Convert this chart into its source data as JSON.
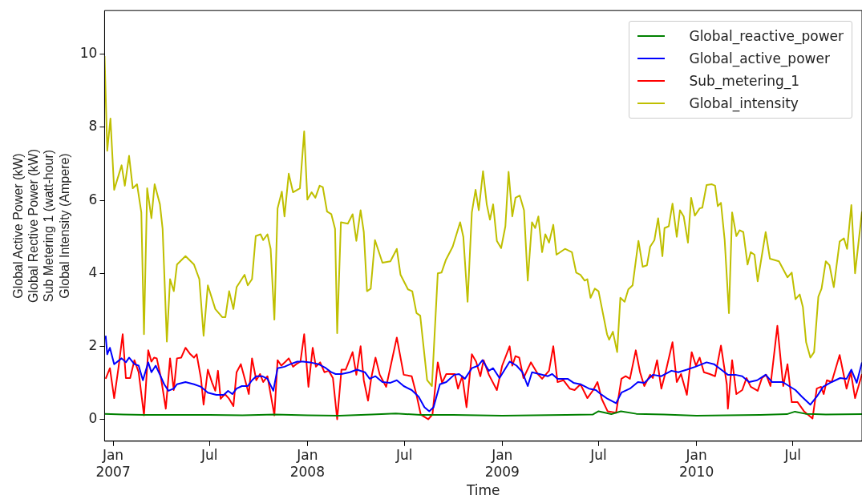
{
  "chart_data": {
    "type": "line",
    "xlabel": "Time",
    "ylabel": "Global Active Power (kW)\nGlobal Rective Power (kW)\nSub Metering 1 (watt-hour)\nGlobal Intensity (Ampere)",
    "xlim": [
      "2006-12-16",
      "2010-11-08"
    ],
    "ylim": [
      -0.6,
      11.2
    ],
    "yticks": [
      0,
      2,
      4,
      6,
      8,
      10
    ],
    "xticks": [
      {
        "value": "2007-01-01",
        "label": "Jan\n2007"
      },
      {
        "value": "2007-07-01",
        "label": "Jul"
      },
      {
        "value": "2008-01-01",
        "label": "Jan\n2008"
      },
      {
        "value": "2008-07-01",
        "label": "Jul"
      },
      {
        "value": "2009-01-01",
        "label": "Jan\n2009"
      },
      {
        "value": "2009-07-01",
        "label": "Jul"
      },
      {
        "value": "2010-01-01",
        "label": "Jan\n2010"
      },
      {
        "value": "2010-07-01",
        "label": "Jul"
      }
    ],
    "grid": false,
    "legend": "top right",
    "marker": "none",
    "line_style": "solid",
    "series": [
      {
        "name": "Global_reactive_power",
        "color": "#008000",
        "x": [
          "2006-12-16",
          "2007-01-20",
          "2007-03-01",
          "2007-05-01",
          "2007-07-01",
          "2007-09-01",
          "2007-11-01",
          "2008-01-01",
          "2008-03-01",
          "2008-05-01",
          "2008-06-15",
          "2008-08-01",
          "2008-10-01",
          "2009-01-01",
          "2009-03-01",
          "2009-05-01",
          "2009-06-20",
          "2009-07-01",
          "2009-07-25",
          "2009-08-12",
          "2009-09-10",
          "2009-11-01",
          "2010-01-01",
          "2010-03-01",
          "2010-05-01",
          "2010-06-20",
          "2010-07-05",
          "2010-07-25",
          "2010-09-01",
          "2010-11-08"
        ],
        "values": [
          0.15,
          0.13,
          0.12,
          0.12,
          0.12,
          0.11,
          0.13,
          0.11,
          0.1,
          0.13,
          0.16,
          0.12,
          0.12,
          0.1,
          0.11,
          0.12,
          0.13,
          0.22,
          0.14,
          0.22,
          0.15,
          0.13,
          0.1,
          0.11,
          0.12,
          0.14,
          0.21,
          0.15,
          0.13,
          0.14
        ]
      },
      {
        "name": "Global_active_power",
        "color": "#0000ff",
        "x": [
          "2006-12-18",
          "2006-12-21",
          "2006-12-26",
          "2007-01-03",
          "2007-01-17",
          "2007-01-25",
          "2007-01-31",
          "2007-02-10",
          "2007-02-18",
          "2007-02-26",
          "2007-03-08",
          "2007-03-14",
          "2007-03-22",
          "2007-03-30",
          "2007-04-07",
          "2007-04-15",
          "2007-04-25",
          "2007-05-01",
          "2007-05-17",
          "2007-06-02",
          "2007-06-15",
          "2007-06-28",
          "2007-07-14",
          "2007-07-28",
          "2007-08-05",
          "2007-08-13",
          "2007-08-21",
          "2007-08-31",
          "2007-09-11",
          "2007-09-19",
          "2007-09-27",
          "2007-10-08",
          "2007-10-18",
          "2007-10-29",
          "2007-11-06",
          "2007-11-19",
          "2007-11-30",
          "2007-12-13",
          "2007-12-24",
          "2008-01-06",
          "2008-01-22",
          "2008-02-05",
          "2008-02-15",
          "2008-02-23",
          "2008-03-05",
          "2008-03-21",
          "2008-04-03",
          "2008-04-18",
          "2008-04-27",
          "2008-05-08",
          "2008-05-21",
          "2008-06-05",
          "2008-06-17",
          "2008-06-30",
          "2008-07-15",
          "2008-07-28",
          "2008-08-08",
          "2008-08-17",
          "2008-08-25",
          "2008-09-06",
          "2008-09-18",
          "2008-10-03",
          "2008-10-12",
          "2008-10-23",
          "2008-11-05",
          "2008-11-17",
          "2008-11-25",
          "2008-12-01",
          "2008-12-07",
          "2008-12-15",
          "2008-12-27",
          "2009-01-15",
          "2009-01-28",
          "2009-02-08",
          "2009-02-18",
          "2009-02-26",
          "2009-03-12",
          "2009-03-28",
          "2009-04-05",
          "2009-04-15",
          "2009-05-04",
          "2009-05-15",
          "2009-05-28",
          "2009-06-13",
          "2009-06-26",
          "2009-07-07",
          "2009-07-18",
          "2009-08-03",
          "2009-08-13",
          "2009-08-29",
          "2009-09-13",
          "2009-09-25",
          "2009-10-11",
          "2009-10-27",
          "2009-11-15",
          "2009-11-28",
          "2009-12-14",
          "2009-12-30",
          "2010-01-20",
          "2010-02-03",
          "2010-02-13",
          "2010-03-01",
          "2010-03-15",
          "2010-03-28",
          "2010-04-10",
          "2010-04-25",
          "2010-05-11",
          "2010-05-23",
          "2010-06-12",
          "2010-06-24",
          "2010-07-06",
          "2010-07-18",
          "2010-08-03",
          "2010-08-15",
          "2010-08-27",
          "2010-09-12",
          "2010-09-28",
          "2010-10-10",
          "2010-10-19",
          "2010-10-29",
          "2010-11-08"
        ],
        "values": [
          2.29,
          1.78,
          1.96,
          1.51,
          1.67,
          1.56,
          1.69,
          1.51,
          1.47,
          1.07,
          1.56,
          1.29,
          1.47,
          1.22,
          0.96,
          0.78,
          0.84,
          0.96,
          1.02,
          0.96,
          0.89,
          0.73,
          0.67,
          0.67,
          0.78,
          0.69,
          0.84,
          0.91,
          0.91,
          1.07,
          1.18,
          1.18,
          1.11,
          0.78,
          1.4,
          1.44,
          1.51,
          1.58,
          1.58,
          1.56,
          1.51,
          1.4,
          1.29,
          1.24,
          1.24,
          1.29,
          1.36,
          1.29,
          1.11,
          1.18,
          1.02,
          1.0,
          1.07,
          0.91,
          0.8,
          0.62,
          0.33,
          0.22,
          0.33,
          0.96,
          1.02,
          1.22,
          1.24,
          1.11,
          1.4,
          1.47,
          1.62,
          1.47,
          1.33,
          1.4,
          1.13,
          1.58,
          1.47,
          1.29,
          0.91,
          1.29,
          1.24,
          1.18,
          1.24,
          1.11,
          1.11,
          1.0,
          0.96,
          0.84,
          0.8,
          0.67,
          0.56,
          0.44,
          0.73,
          0.84,
          1.02,
          1.0,
          1.22,
          1.18,
          1.33,
          1.29,
          1.36,
          1.44,
          1.56,
          1.51,
          1.4,
          1.22,
          1.22,
          1.18,
          1.02,
          1.07,
          1.22,
          1.02,
          1.02,
          0.91,
          0.8,
          0.62,
          0.4,
          0.62,
          0.89,
          1.02,
          1.13,
          1.11,
          1.36,
          1.0,
          1.56
        ]
      },
      {
        "name": "Sub_metering_1",
        "color": "#ff0000",
        "x": [
          "2006-12-18",
          "2006-12-26",
          "2007-01-03",
          "2007-01-11",
          "2007-01-19",
          "2007-01-25",
          "2007-02-02",
          "2007-02-10",
          "2007-02-18",
          "2007-02-28",
          "2007-03-08",
          "2007-03-14",
          "2007-03-19",
          "2007-03-24",
          "2007-04-01",
          "2007-04-10",
          "2007-04-18",
          "2007-04-25",
          "2007-05-01",
          "2007-05-09",
          "2007-05-17",
          "2007-05-25",
          "2007-06-02",
          "2007-06-07",
          "2007-06-15",
          "2007-06-20",
          "2007-06-28",
          "2007-07-06",
          "2007-07-12",
          "2007-07-17",
          "2007-07-22",
          "2007-07-30",
          "2007-08-07",
          "2007-08-15",
          "2007-08-21",
          "2007-08-29",
          "2007-09-05",
          "2007-09-13",
          "2007-09-19",
          "2007-09-27",
          "2007-10-04",
          "2007-10-10",
          "2007-10-18",
          "2007-10-31",
          "2007-11-06",
          "2007-11-13",
          "2007-11-21",
          "2007-11-27",
          "2007-12-05",
          "2007-12-11",
          "2007-12-19",
          "2007-12-26",
          "2008-01-03",
          "2008-01-11",
          "2008-01-17",
          "2008-01-25",
          "2008-02-02",
          "2008-02-10",
          "2008-02-18",
          "2008-02-26",
          "2008-03-05",
          "2008-03-13",
          "2008-03-26",
          "2008-04-02",
          "2008-04-10",
          "2008-04-16",
          "2008-04-24",
          "2008-04-30",
          "2008-05-08",
          "2008-05-16",
          "2008-05-28",
          "2008-06-17",
          "2008-06-30",
          "2008-07-15",
          "2008-07-24",
          "2008-08-01",
          "2008-08-15",
          "2008-08-23",
          "2008-09-02",
          "2008-09-10",
          "2008-09-18",
          "2008-09-26",
          "2008-10-04",
          "2008-10-10",
          "2008-10-18",
          "2008-10-26",
          "2008-11-05",
          "2008-11-13",
          "2008-11-21",
          "2008-11-27",
          "2008-12-07",
          "2008-12-22",
          "2009-01-01",
          "2009-01-15",
          "2009-01-20",
          "2009-01-26",
          "2009-02-02",
          "2009-02-10",
          "2009-02-24",
          "2009-03-09",
          "2009-03-17",
          "2009-03-30",
          "2009-04-07",
          "2009-04-15",
          "2009-04-26",
          "2009-05-08",
          "2009-05-17",
          "2009-05-28",
          "2009-06-10",
          "2009-06-21",
          "2009-06-29",
          "2009-07-07",
          "2009-07-18",
          "2009-08-03",
          "2009-08-13",
          "2009-08-21",
          "2009-08-29",
          "2009-09-09",
          "2009-09-17",
          "2009-09-25",
          "2009-10-06",
          "2009-10-11",
          "2009-10-19",
          "2009-10-27",
          "2009-11-04",
          "2009-11-17",
          "2009-11-25",
          "2009-12-03",
          "2009-12-14",
          "2009-12-23",
          "2009-12-31",
          "2010-01-07",
          "2010-01-15",
          "2010-01-26",
          "2010-02-05",
          "2010-02-16",
          "2010-02-27",
          "2010-03-01",
          "2010-03-09",
          "2010-03-17",
          "2010-03-28",
          "2010-04-05",
          "2010-04-13",
          "2010-04-26",
          "2010-05-04",
          "2010-05-12",
          "2010-05-20",
          "2010-06-02",
          "2010-06-13",
          "2010-06-21",
          "2010-06-29",
          "2010-07-10",
          "2010-07-22",
          "2010-08-07",
          "2010-08-15",
          "2010-08-23",
          "2010-08-28",
          "2010-09-03",
          "2010-09-12",
          "2010-09-27",
          "2010-10-10",
          "2010-10-18",
          "2010-10-26",
          "2010-11-08"
        ],
        "values": [
          1.11,
          1.4,
          0.58,
          1.4,
          2.33,
          1.13,
          1.13,
          1.62,
          1.29,
          0.11,
          1.89,
          1.58,
          1.69,
          1.67,
          1.13,
          0.29,
          1.67,
          0.8,
          1.67,
          1.69,
          1.96,
          1.8,
          1.69,
          1.78,
          1.13,
          0.4,
          1.36,
          1.0,
          0.78,
          1.33,
          0.56,
          0.69,
          0.56,
          0.36,
          1.29,
          1.51,
          1.13,
          0.69,
          1.67,
          1.07,
          1.24,
          1.02,
          1.18,
          0.11,
          1.62,
          1.47,
          1.58,
          1.67,
          1.44,
          1.51,
          1.58,
          2.33,
          0.89,
          1.96,
          1.44,
          1.56,
          1.29,
          1.33,
          1.13,
          0.0,
          1.36,
          1.36,
          1.84,
          1.22,
          2.0,
          1.07,
          0.51,
          1.13,
          1.69,
          1.22,
          0.89,
          2.24,
          1.22,
          1.18,
          0.67,
          0.13,
          0.0,
          0.13,
          1.56,
          1.0,
          1.24,
          1.24,
          1.24,
          0.84,
          1.18,
          0.33,
          1.78,
          1.58,
          1.18,
          1.62,
          1.22,
          0.8,
          1.47,
          2.0,
          1.47,
          1.73,
          1.69,
          1.13,
          1.56,
          1.24,
          1.11,
          1.33,
          2.0,
          1.02,
          1.07,
          0.84,
          0.8,
          0.96,
          0.58,
          0.8,
          1.02,
          0.56,
          0.22,
          0.18,
          1.11,
          1.18,
          1.11,
          1.89,
          1.29,
          0.91,
          1.22,
          1.13,
          1.62,
          0.84,
          1.29,
          2.11,
          1.02,
          1.24,
          0.67,
          1.84,
          1.47,
          1.69,
          1.29,
          1.24,
          1.18,
          2.02,
          0.96,
          0.29,
          1.62,
          0.69,
          0.8,
          1.13,
          0.89,
          0.78,
          1.13,
          1.22,
          0.91,
          2.56,
          0.91,
          1.51,
          0.47,
          0.47,
          0.22,
          0.02,
          0.84,
          0.89,
          0.69,
          1.07,
          1.02,
          1.76,
          0.84,
          1.29,
          0.58,
          1.24
        ]
      },
      {
        "name": "Global_intensity",
        "color": "#bfbf00",
        "x": [
          "2006-12-16",
          "2006-12-21",
          "2006-12-27",
          "2007-01-03",
          "2007-01-17",
          "2007-01-23",
          "2007-01-31",
          "2007-02-07",
          "2007-02-15",
          "2007-02-23",
          "2007-02-28",
          "2007-03-06",
          "2007-03-14",
          "2007-03-20",
          "2007-03-30",
          "2007-04-04",
          "2007-04-12",
          "2007-04-18",
          "2007-04-25",
          "2007-05-01",
          "2007-05-17",
          "2007-06-02",
          "2007-06-12",
          "2007-06-20",
          "2007-06-28",
          "2007-07-12",
          "2007-07-25",
          "2007-07-31",
          "2007-08-07",
          "2007-08-15",
          "2007-08-21",
          "2007-09-05",
          "2007-09-11",
          "2007-09-19",
          "2007-09-26",
          "2007-10-05",
          "2007-10-10",
          "2007-10-18",
          "2007-10-24",
          "2007-10-31",
          "2007-11-06",
          "2007-11-14",
          "2007-11-19",
          "2007-11-27",
          "2007-12-05",
          "2007-12-18",
          "2007-12-26",
          "2008-01-01",
          "2008-01-09",
          "2008-01-16",
          "2008-01-24",
          "2008-01-30",
          "2008-02-07",
          "2008-02-15",
          "2008-02-22",
          "2008-02-26",
          "2008-03-04",
          "2008-03-17",
          "2008-03-26",
          "2008-04-02",
          "2008-04-10",
          "2008-04-16",
          "2008-04-22",
          "2008-04-29",
          "2008-05-07",
          "2008-05-21",
          "2008-06-05",
          "2008-06-17",
          "2008-06-24",
          "2008-07-08",
          "2008-07-16",
          "2008-07-24",
          "2008-07-31",
          "2008-08-13",
          "2008-08-22",
          "2008-09-02",
          "2008-09-09",
          "2008-09-17",
          "2008-09-30",
          "2008-10-14",
          "2008-10-20",
          "2008-10-28",
          "2008-11-05",
          "2008-11-12",
          "2008-11-18",
          "2008-11-26",
          "2008-12-03",
          "2008-12-09",
          "2008-12-15",
          "2008-12-22",
          "2008-12-30",
          "2009-01-07",
          "2009-01-13",
          "2009-01-20",
          "2009-01-26",
          "2009-02-03",
          "2009-02-11",
          "2009-02-18",
          "2009-02-26",
          "2009-03-04",
          "2009-03-10",
          "2009-03-17",
          "2009-03-23",
          "2009-03-30",
          "2009-04-07",
          "2009-04-13",
          "2009-04-29",
          "2009-05-12",
          "2009-05-20",
          "2009-05-28",
          "2009-06-05",
          "2009-06-10",
          "2009-06-16",
          "2009-06-24",
          "2009-07-01",
          "2009-07-07",
          "2009-07-17",
          "2009-07-21",
          "2009-07-28",
          "2009-08-05",
          "2009-08-11",
          "2009-08-19",
          "2009-08-26",
          "2009-09-03",
          "2009-09-14",
          "2009-09-22",
          "2009-09-30",
          "2009-10-06",
          "2009-10-14",
          "2009-10-21",
          "2009-10-29",
          "2009-11-02",
          "2009-11-10",
          "2009-11-17",
          "2009-11-25",
          "2009-12-01",
          "2009-12-08",
          "2009-12-16",
          "2009-12-22",
          "2009-12-29",
          "2010-01-07",
          "2010-01-12",
          "2010-01-20",
          "2010-01-30",
          "2010-02-05",
          "2010-02-10",
          "2010-02-16",
          "2010-02-23",
          "2010-03-03",
          "2010-03-09",
          "2010-03-17",
          "2010-03-23",
          "2010-03-30",
          "2010-04-07",
          "2010-04-13",
          "2010-04-20",
          "2010-04-26",
          "2010-05-11",
          "2010-05-19",
          "2010-06-05",
          "2010-06-13",
          "2010-06-21",
          "2010-06-29",
          "2010-07-06",
          "2010-07-14",
          "2010-07-20",
          "2010-07-26",
          "2010-08-03",
          "2010-08-10",
          "2010-08-18",
          "2010-08-24",
          "2010-09-01",
          "2010-09-08",
          "2010-09-16",
          "2010-09-27",
          "2010-10-05",
          "2010-10-11",
          "2010-10-19",
          "2010-10-26",
          "2010-11-08"
        ],
        "values": [
          9.95,
          7.36,
          8.24,
          6.29,
          6.96,
          6.4,
          7.22,
          6.33,
          6.44,
          5.67,
          2.33,
          6.33,
          5.51,
          6.44,
          5.89,
          5.22,
          2.13,
          3.84,
          3.51,
          4.24,
          4.47,
          4.24,
          3.84,
          2.29,
          3.67,
          3.02,
          2.8,
          2.8,
          3.51,
          3.02,
          3.62,
          3.96,
          3.67,
          3.84,
          5.02,
          5.07,
          4.91,
          5.07,
          4.67,
          2.73,
          5.78,
          6.24,
          5.56,
          6.73,
          6.22,
          6.33,
          7.89,
          6.02,
          6.22,
          6.07,
          6.4,
          6.36,
          5.69,
          5.62,
          5.22,
          2.36,
          5.4,
          5.36,
          5.62,
          4.89,
          5.73,
          5.13,
          3.51,
          3.58,
          4.91,
          4.29,
          4.33,
          4.67,
          3.96,
          3.56,
          3.51,
          2.91,
          2.84,
          1.07,
          0.91,
          4.0,
          4.02,
          4.36,
          4.73,
          5.4,
          5.0,
          3.22,
          5.67,
          6.29,
          5.73,
          6.8,
          5.89,
          5.47,
          5.89,
          4.89,
          4.69,
          5.29,
          6.78,
          5.56,
          6.07,
          6.13,
          5.73,
          3.8,
          5.4,
          5.24,
          5.56,
          4.58,
          5.07,
          4.84,
          5.33,
          4.51,
          4.67,
          4.58,
          4.02,
          3.96,
          3.8,
          3.84,
          3.33,
          3.58,
          3.51,
          3.07,
          2.33,
          2.18,
          2.4,
          1.84,
          3.33,
          3.22,
          3.56,
          3.67,
          4.89,
          4.18,
          4.22,
          4.73,
          4.91,
          5.51,
          4.47,
          5.24,
          5.29,
          5.91,
          5.0,
          5.73,
          5.56,
          4.84,
          6.07,
          5.58,
          5.78,
          5.8,
          6.42,
          6.44,
          6.4,
          5.84,
          5.93,
          4.91,
          2.91,
          5.67,
          5.02,
          5.18,
          5.13,
          4.24,
          4.58,
          4.51,
          3.78,
          5.13,
          4.4,
          4.33,
          4.11,
          3.89,
          4.02,
          3.29,
          3.42,
          3.07,
          2.11,
          1.69,
          1.84,
          3.36,
          3.58,
          4.33,
          4.22,
          3.62,
          4.87,
          4.96,
          4.67,
          5.87,
          4.0,
          5.69
        ]
      }
    ]
  }
}
